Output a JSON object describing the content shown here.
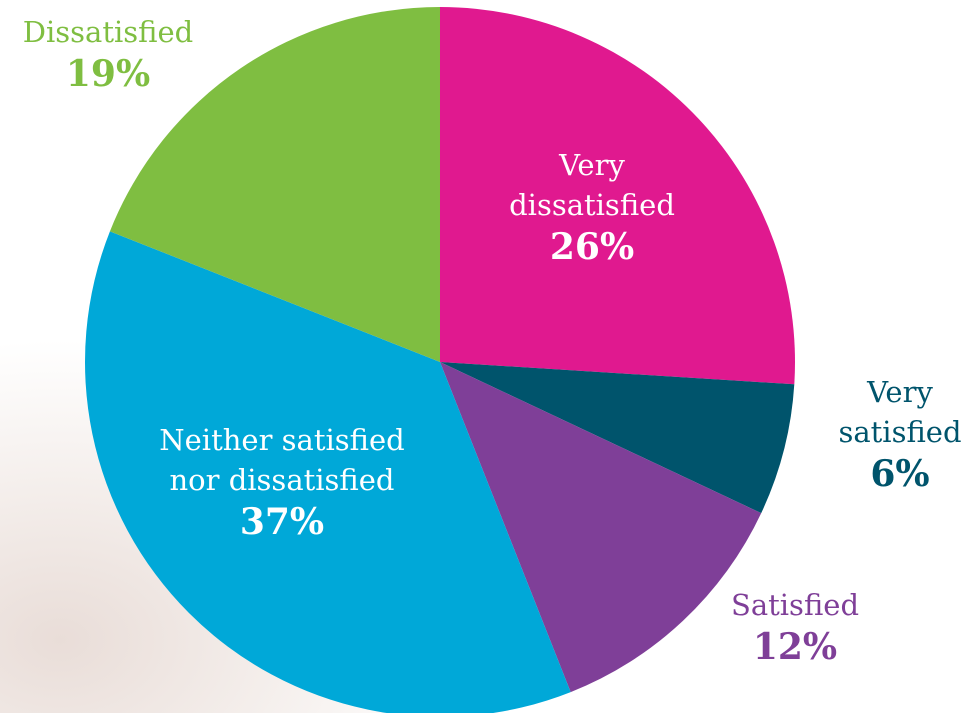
{
  "chart_data": {
    "type": "pie",
    "categories": [
      "Very\ndissatisfied",
      "Very\nsatisfied",
      "Satisfied",
      "Neither satisfied\nnor dissatisfied",
      "Dissatisfied"
    ],
    "values": [
      26,
      6,
      12,
      37,
      19
    ],
    "value_labels": [
      "26%",
      "6%",
      "12%",
      "37%",
      "19%"
    ],
    "colors": [
      "#e0198f",
      "#00546c",
      "#7f3f98",
      "#00a8d8",
      "#7fbe41"
    ]
  }
}
